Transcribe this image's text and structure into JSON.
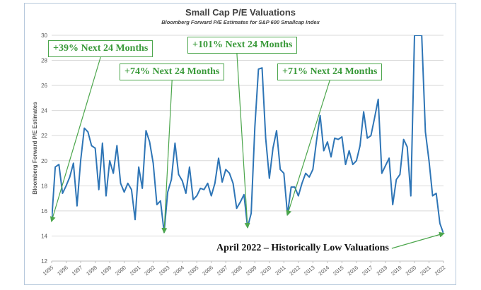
{
  "chart_data": {
    "type": "line",
    "title": "Small Cap P/E Valuations",
    "subtitle": "Bloomberg Forward P/E Estimates for S&P 600 Smallcap Index",
    "ylabel": "Bloomberg Forward P/E Estimates",
    "ylim": [
      12,
      30
    ],
    "yticks": [
      12,
      14,
      16,
      18,
      20,
      22,
      24,
      26,
      28,
      30
    ],
    "xlim": [
      1995,
      2022
    ],
    "xticks": [
      "1995",
      "1996",
      "1997",
      "1998",
      "1999",
      "2000",
      "2001",
      "2002",
      "2003",
      "2004",
      "2005",
      "2006",
      "2007",
      "2008",
      "2009",
      "2010",
      "2011",
      "2012",
      "2013",
      "2014",
      "2015",
      "2016",
      "2017",
      "2018",
      "2019",
      "2020",
      "2021",
      "2022"
    ],
    "grid": true,
    "series": [
      {
        "color": "#2e75b6",
        "points": [
          [
            1995.0,
            15.2
          ],
          [
            1995.25,
            19.5
          ],
          [
            1995.5,
            19.7
          ],
          [
            1995.75,
            17.4
          ],
          [
            1996.0,
            18.0
          ],
          [
            1996.25,
            18.7
          ],
          [
            1996.5,
            19.8
          ],
          [
            1996.75,
            16.4
          ],
          [
            1997.0,
            20.0
          ],
          [
            1997.25,
            22.6
          ],
          [
            1997.5,
            22.3
          ],
          [
            1997.75,
            21.2
          ],
          [
            1998.0,
            21.0
          ],
          [
            1998.25,
            17.7
          ],
          [
            1998.5,
            21.4
          ],
          [
            1998.75,
            17.2
          ],
          [
            1999.0,
            20.0
          ],
          [
            1999.25,
            19.0
          ],
          [
            1999.5,
            21.2
          ],
          [
            1999.75,
            18.2
          ],
          [
            2000.0,
            17.5
          ],
          [
            2000.25,
            18.2
          ],
          [
            2000.5,
            17.7
          ],
          [
            2000.75,
            15.3
          ],
          [
            2001.0,
            19.5
          ],
          [
            2001.25,
            17.8
          ],
          [
            2001.5,
            22.4
          ],
          [
            2001.75,
            21.5
          ],
          [
            2002.0,
            19.8
          ],
          [
            2002.25,
            16.5
          ],
          [
            2002.5,
            16.8
          ],
          [
            2002.75,
            14.3
          ],
          [
            2003.0,
            17.5
          ],
          [
            2003.25,
            18.5
          ],
          [
            2003.5,
            21.4
          ],
          [
            2003.75,
            18.9
          ],
          [
            2004.0,
            18.4
          ],
          [
            2004.25,
            17.4
          ],
          [
            2004.5,
            19.5
          ],
          [
            2004.75,
            16.9
          ],
          [
            2005.0,
            17.2
          ],
          [
            2005.25,
            17.8
          ],
          [
            2005.5,
            17.7
          ],
          [
            2005.75,
            18.2
          ],
          [
            2006.0,
            17.2
          ],
          [
            2006.25,
            18.2
          ],
          [
            2006.5,
            20.2
          ],
          [
            2006.75,
            18.3
          ],
          [
            2007.0,
            19.3
          ],
          [
            2007.25,
            19.0
          ],
          [
            2007.5,
            18.2
          ],
          [
            2007.75,
            16.2
          ],
          [
            2008.0,
            16.7
          ],
          [
            2008.25,
            17.3
          ],
          [
            2008.5,
            14.7
          ],
          [
            2008.75,
            15.8
          ],
          [
            2009.0,
            22.7
          ],
          [
            2009.25,
            27.3
          ],
          [
            2009.5,
            27.4
          ],
          [
            2009.75,
            21.8
          ],
          [
            2010.0,
            18.6
          ],
          [
            2010.25,
            21.0
          ],
          [
            2010.5,
            22.4
          ],
          [
            2010.75,
            19.3
          ],
          [
            2011.0,
            19.0
          ],
          [
            2011.25,
            15.7
          ],
          [
            2011.5,
            17.9
          ],
          [
            2011.75,
            17.9
          ],
          [
            2012.0,
            17.2
          ],
          [
            2012.25,
            18.2
          ],
          [
            2012.5,
            19.0
          ],
          [
            2012.75,
            18.7
          ],
          [
            2013.0,
            19.3
          ],
          [
            2013.25,
            21.6
          ],
          [
            2013.5,
            23.6
          ],
          [
            2013.75,
            20.8
          ],
          [
            2014.0,
            21.5
          ],
          [
            2014.25,
            20.3
          ],
          [
            2014.5,
            21.8
          ],
          [
            2014.75,
            21.7
          ],
          [
            2015.0,
            21.9
          ],
          [
            2015.25,
            19.7
          ],
          [
            2015.5,
            20.8
          ],
          [
            2015.75,
            19.7
          ],
          [
            2016.0,
            20.0
          ],
          [
            2016.25,
            21.2
          ],
          [
            2016.5,
            23.9
          ],
          [
            2016.75,
            21.8
          ],
          [
            2017.0,
            22.0
          ],
          [
            2017.25,
            23.4
          ],
          [
            2017.5,
            24.9
          ],
          [
            2017.75,
            19.0
          ],
          [
            2018.0,
            19.6
          ],
          [
            2018.25,
            20.2
          ],
          [
            2018.5,
            16.5
          ],
          [
            2018.75,
            18.5
          ],
          [
            2019.0,
            18.9
          ],
          [
            2019.25,
            21.7
          ],
          [
            2019.5,
            21.1
          ],
          [
            2019.75,
            17.2
          ],
          [
            2020.0,
            30.0
          ],
          [
            2020.5,
            30.0
          ],
          [
            2020.75,
            22.3
          ],
          [
            2021.0,
            20.0
          ],
          [
            2021.25,
            17.2
          ],
          [
            2021.5,
            17.4
          ],
          [
            2021.75,
            15.0
          ],
          [
            2022.0,
            14.2
          ]
        ]
      }
    ],
    "annotations": [
      {
        "text": "+39% Next 24 Months",
        "point_to": [
          1995.0,
          15.2
        ]
      },
      {
        "text": "+74% Next 24 Months",
        "point_to": [
          2002.75,
          14.3
        ]
      },
      {
        "text": "+101% Next 24 Months",
        "point_to": [
          2008.5,
          14.7
        ]
      },
      {
        "text": "+71% Next 24 Months",
        "point_to": [
          2011.25,
          15.7
        ]
      },
      {
        "text": "April 2022 – Historically Low Valuations",
        "point_to": [
          2022.0,
          14.2
        ]
      }
    ]
  }
}
